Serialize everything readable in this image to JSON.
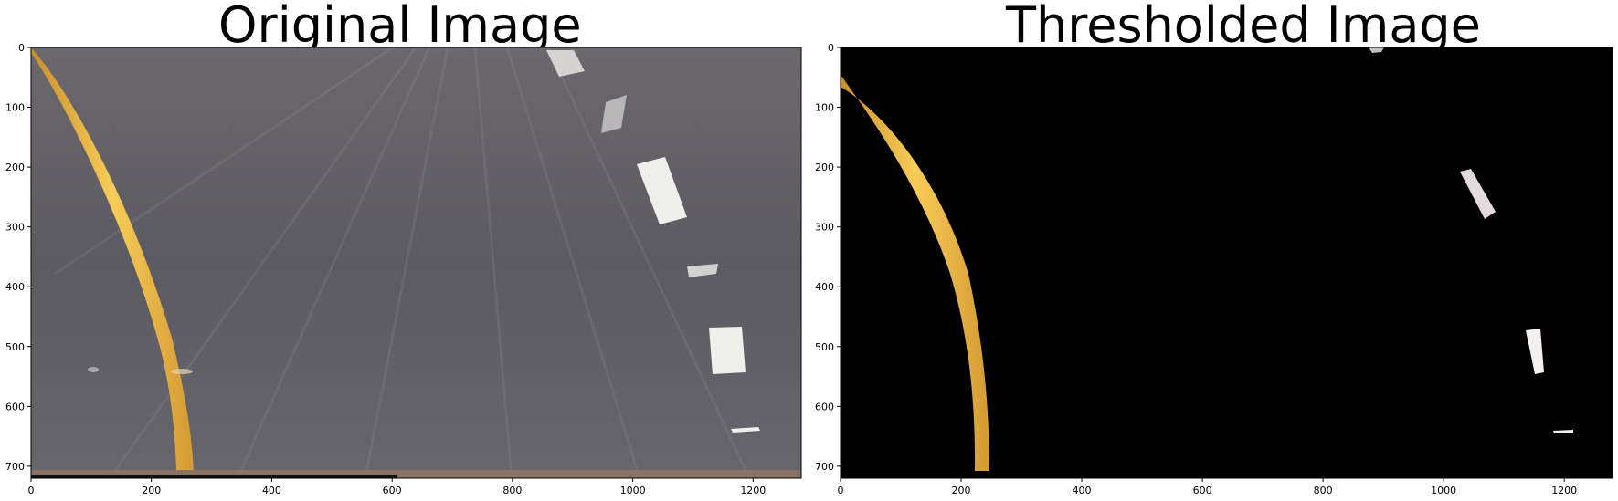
{
  "figure": {
    "left_panel": {
      "title": "Original Image",
      "x_ticks": [
        "0",
        "200",
        "400",
        "600",
        "800",
        "1000",
        "1200"
      ],
      "y_ticks": [
        "0",
        "100",
        "200",
        "300",
        "400",
        "500",
        "600",
        "700"
      ]
    },
    "right_panel": {
      "title": "Thresholded Image",
      "x_ticks": [
        "0",
        "200",
        "400",
        "600",
        "800",
        "1000",
        "1200"
      ],
      "y_ticks": [
        "0",
        "100",
        "200",
        "300",
        "400",
        "500",
        "600",
        "700"
      ]
    },
    "colors": {
      "road": "#5f5e63",
      "lane_yellow": "#f2c14a",
      "lane_white": "#f4f4f2",
      "threshold_bg": "#000000"
    }
  }
}
